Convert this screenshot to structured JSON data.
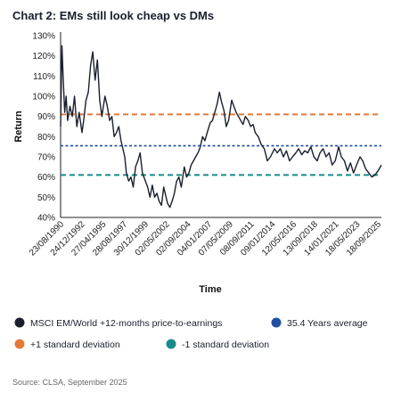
{
  "title": "Chart 2: EMs still look cheap vs DMs",
  "source": "Source: CLSA, September 2025",
  "colors": {
    "series": "#1a1f2e",
    "average": "#1f4fa0",
    "plus_sd": "#e07b39",
    "minus_sd": "#1a8a8c"
  },
  "chart_data": {
    "type": "line",
    "xlabel": "Time",
    "ylabel": "Return",
    "ylim": [
      0.4,
      1.3
    ],
    "yticks": [
      0.4,
      0.5,
      0.6,
      0.7,
      0.8,
      0.9,
      1.0,
      1.1,
      1.2,
      1.3
    ],
    "ytick_labels": [
      "40%",
      "50%",
      "60%",
      "70%",
      "80%",
      "90%",
      "100%",
      "110%",
      "120%",
      "130%"
    ],
    "xlim": [
      "1990-08-23",
      "2025-09-18"
    ],
    "xtick_labels": [
      "23/08/1990",
      "24/12/1992",
      "27/04/1995",
      "28/08/1997",
      "30/12/1999",
      "02/05/2002",
      "02/09/2004",
      "04/01/2007",
      "07/05/2009",
      "08/09/2011",
      "09/01/2014",
      "12/05/2016",
      "13/09/2018",
      "14/01/2021",
      "18/05/2023",
      "18/09/2025"
    ],
    "grid": false,
    "legend_position": "bottom",
    "series": [
      {
        "name": "MSCI EM/World +12-months price-to-earnings",
        "x": [
          "1990-08-23",
          "1990-10-15",
          "1990-12-01",
          "1991-02-01",
          "1991-04-01",
          "1991-06-01",
          "1991-09-01",
          "1991-12-01",
          "1992-03-01",
          "1992-06-01",
          "1992-09-01",
          "1992-12-24",
          "1993-03-01",
          "1993-06-01",
          "1993-09-01",
          "1993-12-01",
          "1994-03-01",
          "1994-06-01",
          "1994-09-01",
          "1994-12-01",
          "1995-03-01",
          "1995-04-27",
          "1995-07-01",
          "1995-10-01",
          "1996-01-01",
          "1996-04-01",
          "1996-07-01",
          "1996-10-01",
          "1997-01-01",
          "1997-04-01",
          "1997-08-28",
          "1997-11-01",
          "1998-02-01",
          "1998-05-01",
          "1998-08-01",
          "1998-11-01",
          "1999-02-01",
          "1999-05-01",
          "1999-08-01",
          "1999-12-30",
          "2000-03-01",
          "2000-06-01",
          "2000-09-01",
          "2000-12-01",
          "2001-03-01",
          "2001-06-01",
          "2001-09-01",
          "2001-12-01",
          "2002-05-02",
          "2002-08-01",
          "2002-11-01",
          "2003-02-01",
          "2003-05-01",
          "2003-08-01",
          "2003-11-01",
          "2004-03-01",
          "2004-06-01",
          "2004-09-02",
          "2004-12-01",
          "2005-03-01",
          "2005-06-01",
          "2005-09-01",
          "2005-12-01",
          "2006-03-01",
          "2006-06-01",
          "2006-09-01",
          "2007-01-04",
          "2007-04-01",
          "2007-07-01",
          "2007-10-01",
          "2008-01-01",
          "2008-04-01",
          "2008-07-01",
          "2008-10-01",
          "2009-01-01",
          "2009-05-07",
          "2009-08-01",
          "2009-11-01",
          "2010-02-01",
          "2010-05-01",
          "2010-08-01",
          "2010-11-01",
          "2011-03-01",
          "2011-06-01",
          "2011-09-08",
          "2011-12-01",
          "2012-04-01",
          "2012-08-01",
          "2012-12-01",
          "2013-04-01",
          "2013-08-01",
          "2014-01-09",
          "2014-05-01",
          "2014-09-01",
          "2015-01-01",
          "2015-05-01",
          "2015-09-01",
          "2016-01-01",
          "2016-05-12",
          "2016-09-01",
          "2017-01-01",
          "2017-05-01",
          "2017-09-01",
          "2018-01-01",
          "2018-05-01",
          "2018-09-13",
          "2019-01-01",
          "2019-05-01",
          "2019-09-01",
          "2020-01-01",
          "2020-05-01",
          "2020-09-01",
          "2021-01-14",
          "2021-05-01",
          "2021-09-01",
          "2022-01-01",
          "2022-05-01",
          "2022-09-01",
          "2023-01-01",
          "2023-05-18",
          "2023-09-01",
          "2024-01-01",
          "2024-05-01",
          "2024-09-01",
          "2025-01-01",
          "2025-05-01",
          "2025-09-18"
        ],
        "y": [
          0.85,
          1.25,
          1.1,
          0.92,
          1.0,
          0.88,
          0.95,
          0.9,
          1.0,
          0.85,
          0.92,
          0.82,
          0.88,
          0.98,
          1.02,
          1.15,
          1.22,
          1.08,
          1.18,
          0.98,
          0.9,
          0.95,
          1.0,
          0.95,
          0.88,
          0.9,
          0.8,
          0.82,
          0.85,
          0.78,
          0.7,
          0.62,
          0.58,
          0.6,
          0.55,
          0.65,
          0.68,
          0.72,
          0.62,
          0.57,
          0.55,
          0.5,
          0.56,
          0.5,
          0.52,
          0.48,
          0.46,
          0.55,
          0.47,
          0.45,
          0.48,
          0.52,
          0.58,
          0.6,
          0.55,
          0.65,
          0.6,
          0.62,
          0.66,
          0.68,
          0.7,
          0.72,
          0.75,
          0.8,
          0.78,
          0.82,
          0.87,
          0.88,
          0.92,
          0.96,
          1.02,
          0.97,
          0.93,
          0.85,
          0.88,
          0.98,
          0.95,
          0.92,
          0.9,
          0.88,
          0.86,
          0.9,
          0.88,
          0.85,
          0.86,
          0.82,
          0.8,
          0.76,
          0.74,
          0.68,
          0.7,
          0.74,
          0.72,
          0.74,
          0.7,
          0.73,
          0.68,
          0.7,
          0.72,
          0.74,
          0.71,
          0.73,
          0.72,
          0.75,
          0.7,
          0.68,
          0.72,
          0.74,
          0.7,
          0.72,
          0.66,
          0.68,
          0.75,
          0.7,
          0.68,
          0.63,
          0.67,
          0.62,
          0.66,
          0.7,
          0.68,
          0.64,
          0.62,
          0.6,
          0.61,
          0.63,
          0.66
        ]
      },
      {
        "name": "35.4 Years average",
        "value": 0.755
      },
      {
        "name": "+1 standard deviation",
        "value": 0.91
      },
      {
        "name": "-1 standard deviation",
        "value": 0.61
      }
    ]
  }
}
